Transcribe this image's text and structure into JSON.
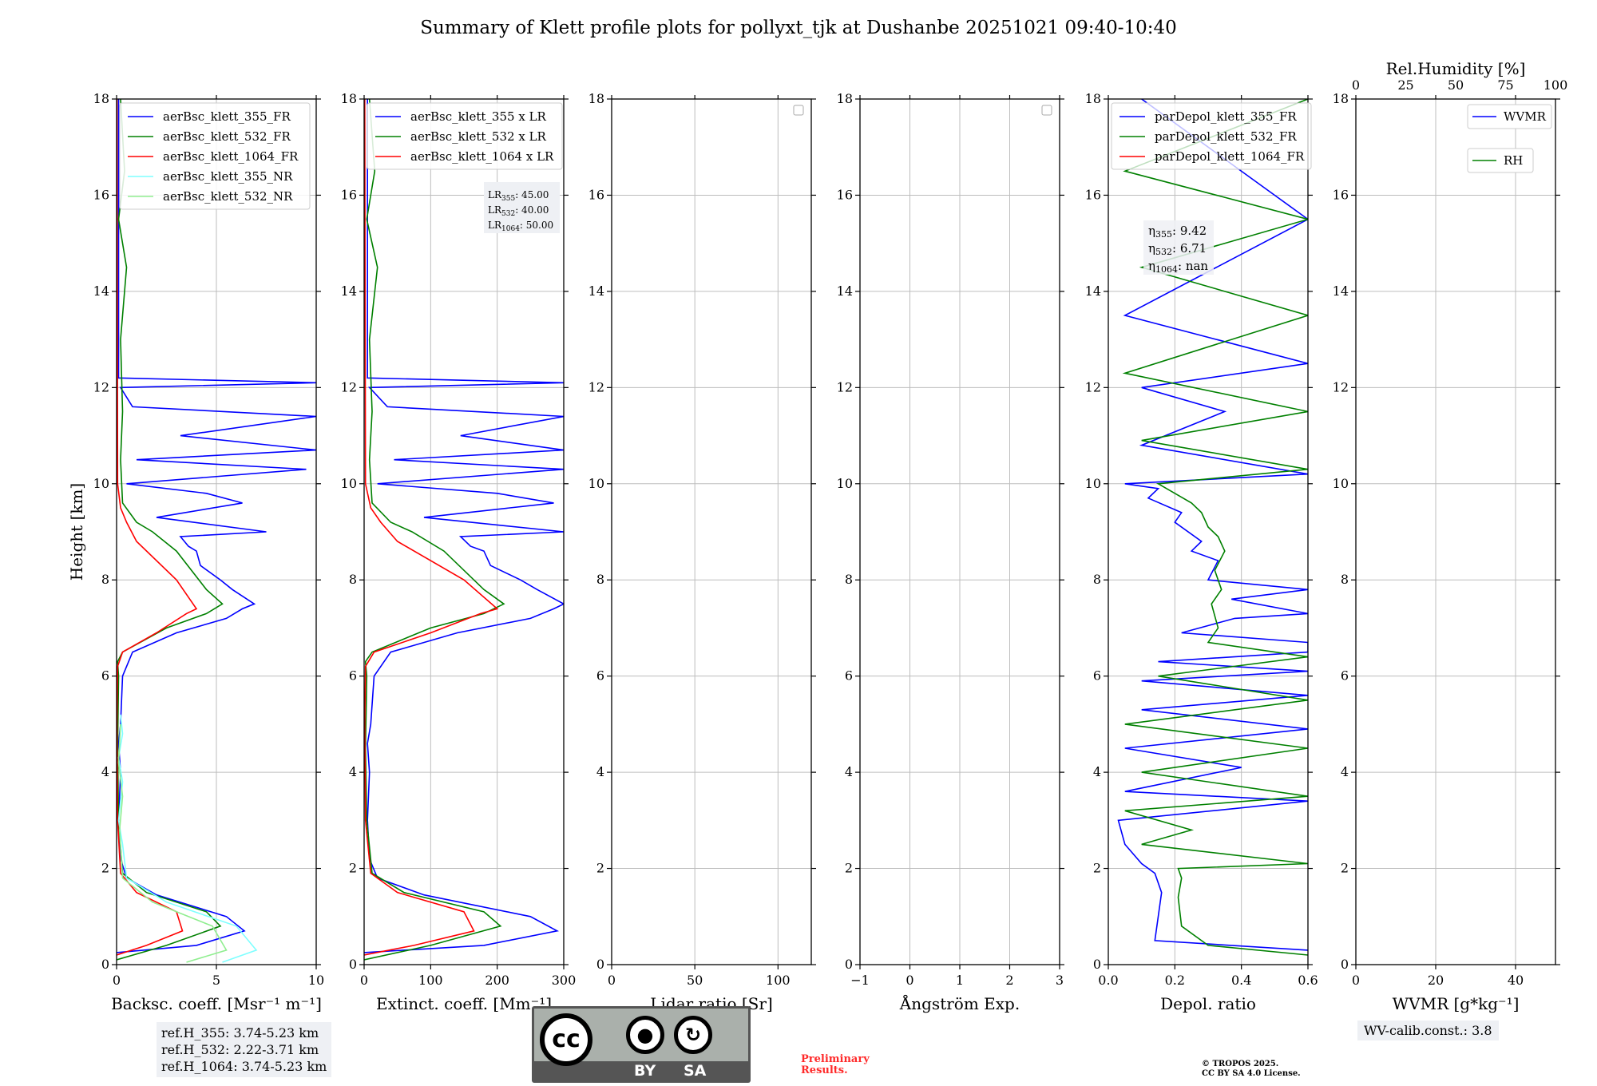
{
  "title": "Summary of Klett profile plots for pollyxt_tjk at Dushanbe 20251021 09:40-10:40",
  "colors": {
    "c355": "#0000ff",
    "c532": "#008000",
    "c1064": "#ff0000",
    "c355nr": "#7fffff",
    "c532nr": "#90ee90"
  },
  "chart_data": [
    {
      "type": "line",
      "id": "backscatter",
      "xlabel": "Backsc. coeff. [Msr⁻¹ m⁻¹]",
      "ylabel": "Height [km]",
      "xlim": [
        0,
        10
      ],
      "ylim": [
        0,
        18
      ],
      "xticks": [
        0,
        5,
        10
      ],
      "xtick_labels": [
        "0",
        "5",
        "10"
      ],
      "yticks": [
        0,
        2,
        4,
        6,
        8,
        10,
        12,
        14,
        16,
        18
      ],
      "ytick_labels": [
        "0",
        "2",
        "4",
        "6",
        "8",
        "10",
        "12",
        "14",
        "16",
        "18"
      ],
      "legend": [
        "aerBsc_klett_355_FR",
        "aerBsc_klett_532_FR",
        "aerBsc_klett_1064_FR",
        "aerBsc_klett_355_NR",
        "aerBsc_klett_532_NR"
      ],
      "series": [
        {
          "name": "aerBsc_klett_355_FR",
          "color": "#0000ff",
          "x": [
            0,
            4.0,
            6.4,
            5.5,
            2.0,
            0.5,
            0.2,
            0.1,
            0.2,
            0.1,
            0.2,
            0.3,
            0.8,
            3.0,
            5.5,
            6.3,
            6.9,
            5.8,
            5.2,
            4.2,
            4.0,
            3.6,
            3.2,
            7.5,
            2.0,
            6.3,
            4.5,
            0.5,
            9.5,
            1.0,
            10.0,
            3.2,
            10.0,
            0.8,
            0.2,
            10.0,
            0.1,
            0.1
          ],
          "y": [
            0.25,
            0.4,
            0.7,
            1.0,
            1.45,
            1.8,
            2.2,
            3.0,
            4.0,
            4.6,
            5.0,
            6.0,
            6.5,
            6.9,
            7.2,
            7.4,
            7.5,
            7.8,
            8.0,
            8.3,
            8.6,
            8.7,
            8.9,
            9.0,
            9.3,
            9.6,
            9.8,
            10.0,
            10.3,
            10.5,
            10.7,
            11.0,
            11.4,
            11.6,
            12.0,
            12.1,
            12.2,
            18.0
          ]
        },
        {
          "name": "aerBsc_klett_532_FR",
          "color": "#008000",
          "x": [
            0,
            2.5,
            5.2,
            4.5,
            1.5,
            0.3,
            0.1,
            0.05,
            0.1,
            0.05,
            0.3,
            2.5,
            4.5,
            5.3,
            4.5,
            3.0,
            1.8,
            1.0,
            0.3,
            0.2,
            0.3,
            0.2,
            0.5,
            0.1,
            0.4,
            0.2
          ],
          "y": [
            0.1,
            0.4,
            0.8,
            1.1,
            1.5,
            1.9,
            3.0,
            4.5,
            6.0,
            6.3,
            6.5,
            7.0,
            7.3,
            7.5,
            7.8,
            8.6,
            9.0,
            9.2,
            9.6,
            10.5,
            11.5,
            13.0,
            14.5,
            15.5,
            16.5,
            18.0
          ]
        },
        {
          "name": "aerBsc_klett_1064_FR",
          "color": "#ff0000",
          "x": [
            0,
            1.5,
            3.3,
            3.0,
            1.0,
            0.2,
            0.05,
            0.02,
            0.05,
            0.3,
            2.0,
            3.5,
            4.0,
            3.0,
            1.0,
            0.5,
            0.2,
            0.05,
            0.02
          ],
          "y": [
            0.2,
            0.4,
            0.7,
            1.1,
            1.5,
            1.9,
            3.0,
            5.0,
            6.2,
            6.5,
            6.9,
            7.3,
            7.4,
            8.0,
            8.8,
            9.2,
            9.5,
            10.0,
            18.0
          ]
        },
        {
          "name": "aerBsc_klett_355_NR",
          "color": "#7fffff",
          "x": [
            5.3,
            7.0,
            6.0,
            2.5,
            0.5,
            0.3,
            0.1,
            0.3,
            0.1,
            0.3,
            0.2
          ],
          "y": [
            0.05,
            0.3,
            0.8,
            1.3,
            1.8,
            2.5,
            3.0,
            3.8,
            4.3,
            4.8,
            5.2
          ]
        },
        {
          "name": "aerBsc_klett_532_NR",
          "color": "#90ee90",
          "x": [
            3.5,
            5.5,
            4.8,
            1.8,
            0.3,
            0.15,
            0.3,
            0.1,
            0.2
          ],
          "y": [
            0.05,
            0.3,
            0.8,
            1.3,
            1.8,
            2.8,
            3.5,
            4.2,
            5.0
          ]
        }
      ]
    },
    {
      "type": "line",
      "id": "extinction",
      "xlabel": "Extinct. coeff. [Mm⁻¹]",
      "xlim": [
        0,
        300
      ],
      "ylim": [
        0,
        18
      ],
      "xticks": [
        0,
        100,
        200,
        300
      ],
      "xtick_labels": [
        "0",
        "100",
        "200",
        "300"
      ],
      "yticks": [
        0,
        2,
        4,
        6,
        8,
        10,
        12,
        14,
        16,
        18
      ],
      "ytick_labels": [
        "0",
        "2",
        "4",
        "6",
        "8",
        "10",
        "12",
        "14",
        "16",
        "18"
      ],
      "legend": [
        "aerBsc_klett_355 x LR",
        "aerBsc_klett_532 x LR",
        "aerBsc_klett_1064 x LR"
      ],
      "annotation": {
        "lines": [
          "LR355: 45.00",
          "LR532: 40.00",
          "LR1064: 50.00"
        ]
      },
      "series": [
        {
          "name": "aerBsc_klett_355 x LR",
          "color": "#0000ff",
          "x": [
            0,
            180,
            290,
            250,
            90,
            20,
            8,
            5,
            8,
            5,
            10,
            15,
            40,
            140,
            250,
            285,
            300,
            260,
            235,
            190,
            180,
            160,
            145,
            300,
            90,
            285,
            200,
            20,
            300,
            45,
            300,
            145,
            300,
            35,
            8,
            300,
            5,
            5
          ],
          "y": [
            0.25,
            0.4,
            0.7,
            1.0,
            1.45,
            1.8,
            2.2,
            3.0,
            4.0,
            4.6,
            5.0,
            6.0,
            6.5,
            6.9,
            7.2,
            7.4,
            7.5,
            7.8,
            8.0,
            8.3,
            8.6,
            8.7,
            8.9,
            9.0,
            9.3,
            9.6,
            9.8,
            10.0,
            10.3,
            10.5,
            10.7,
            11.0,
            11.4,
            11.6,
            12.0,
            12.1,
            12.2,
            18.0
          ]
        },
        {
          "name": "aerBsc_klett_532 x LR",
          "color": "#008000",
          "x": [
            0,
            100,
            205,
            180,
            60,
            12,
            4,
            2,
            4,
            2,
            12,
            100,
            180,
            210,
            180,
            120,
            72,
            40,
            12,
            8,
            12,
            8,
            20,
            4,
            16,
            8
          ],
          "y": [
            0.1,
            0.4,
            0.8,
            1.1,
            1.5,
            1.9,
            3.0,
            4.5,
            6.0,
            6.3,
            6.5,
            7.0,
            7.3,
            7.5,
            7.8,
            8.6,
            9.0,
            9.2,
            9.6,
            10.5,
            11.5,
            13.0,
            14.5,
            15.5,
            16.5,
            18.0
          ]
        },
        {
          "name": "aerBsc_klett_1064 x LR",
          "color": "#ff0000",
          "x": [
            0,
            75,
            165,
            150,
            50,
            10,
            2,
            1,
            2,
            15,
            100,
            175,
            200,
            150,
            50,
            25,
            10,
            2,
            1
          ],
          "y": [
            0.2,
            0.4,
            0.7,
            1.1,
            1.5,
            1.9,
            3.0,
            5.0,
            6.2,
            6.5,
            6.9,
            7.3,
            7.4,
            8.0,
            8.8,
            9.2,
            9.5,
            10.0,
            18.0
          ]
        }
      ]
    },
    {
      "type": "line",
      "id": "lidar-ratio",
      "xlabel": "Lidar ratio [Sr]",
      "xlim": [
        0,
        120
      ],
      "ylim": [
        0,
        18
      ],
      "xticks": [
        0,
        50,
        100
      ],
      "xtick_labels": [
        "0",
        "50",
        "100"
      ],
      "yticks": [
        0,
        2,
        4,
        6,
        8,
        10,
        12,
        14,
        16,
        18
      ],
      "ytick_labels": [
        "0",
        "2",
        "4",
        "6",
        "8",
        "10",
        "12",
        "14",
        "16",
        "18"
      ],
      "series": []
    },
    {
      "type": "line",
      "id": "angstrom",
      "xlabel": "Ångström Exp.",
      "xlim": [
        -1,
        3
      ],
      "ylim": [
        0,
        18
      ],
      "xticks": [
        -1,
        0,
        1,
        2,
        3
      ],
      "xtick_labels": [
        "−1",
        "0",
        "1",
        "2",
        "3"
      ],
      "yticks": [
        0,
        2,
        4,
        6,
        8,
        10,
        12,
        14,
        16,
        18
      ],
      "ytick_labels": [
        "0",
        "2",
        "4",
        "6",
        "8",
        "10",
        "12",
        "14",
        "16",
        "18"
      ],
      "series": []
    },
    {
      "type": "line",
      "id": "depol",
      "xlabel": "Depol. ratio",
      "xlim": [
        0,
        0.6
      ],
      "ylim": [
        0,
        18
      ],
      "xticks": [
        0,
        0.2,
        0.4,
        0.6
      ],
      "xtick_labels": [
        "0.0",
        "0.2",
        "0.4",
        "0.6"
      ],
      "yticks": [
        0,
        2,
        4,
        6,
        8,
        10,
        12,
        14,
        16,
        18
      ],
      "ytick_labels": [
        "0",
        "2",
        "4",
        "6",
        "8",
        "10",
        "12",
        "14",
        "16",
        "18"
      ],
      "legend": [
        "parDepol_klett_355_FR",
        "parDepol_klett_532_FR",
        "parDepol_klett_1064_FR"
      ],
      "annotation": {
        "lines": [
          "η355: 9.42",
          "η532: 6.71",
          "η1064: nan"
        ]
      },
      "series": [
        {
          "name": "parDepol_klett_355_FR",
          "color": "#0000ff",
          "x": [
            0.6,
            0.14,
            0.15,
            0.16,
            0.14,
            0.1,
            0.05,
            0.03,
            0.6,
            0.05,
            0.4,
            0.05,
            0.6,
            0.1,
            0.6,
            0.1,
            0.6,
            0.15,
            0.6,
            0.6,
            0.22,
            0.38,
            0.6,
            0.37,
            0.6,
            0.3,
            0.33,
            0.25,
            0.28,
            0.2,
            0.22,
            0.12,
            0.15,
            0.05,
            0.6,
            0.1,
            0.35,
            0.1,
            0.6,
            0.05,
            0.6,
            0.1
          ],
          "y": [
            0.3,
            0.5,
            1.0,
            1.5,
            1.9,
            2.1,
            2.5,
            3.0,
            3.4,
            3.6,
            4.1,
            4.5,
            4.9,
            5.3,
            5.6,
            5.9,
            6.1,
            6.3,
            6.5,
            6.7,
            6.9,
            7.2,
            7.3,
            7.6,
            7.8,
            8.0,
            8.4,
            8.6,
            8.8,
            9.2,
            9.4,
            9.7,
            9.9,
            10.0,
            10.2,
            10.8,
            11.5,
            12.0,
            12.5,
            13.5,
            15.5,
            18.0
          ]
        },
        {
          "name": "parDepol_klett_532_FR",
          "color": "#008000",
          "x": [
            0.6,
            0.3,
            0.22,
            0.21,
            0.22,
            0.21,
            0.6,
            0.1,
            0.25,
            0.05,
            0.6,
            0.1,
            0.6,
            0.05,
            0.6,
            0.15,
            0.6,
            0.3,
            0.33,
            0.31,
            0.34,
            0.32,
            0.35,
            0.33,
            0.3,
            0.28,
            0.25,
            0.2,
            0.15,
            0.6,
            0.1,
            0.6,
            0.05,
            0.6,
            0.1,
            0.6,
            0.05,
            0.6
          ],
          "y": [
            0.2,
            0.4,
            0.8,
            1.4,
            1.8,
            2.0,
            2.1,
            2.5,
            2.8,
            3.2,
            3.5,
            4.0,
            4.5,
            5.0,
            5.5,
            6.0,
            6.4,
            6.7,
            7.0,
            7.5,
            7.8,
            8.2,
            8.6,
            8.9,
            9.1,
            9.4,
            9.6,
            9.8,
            10.0,
            10.3,
            10.9,
            11.5,
            12.3,
            13.5,
            14.5,
            15.5,
            16.5,
            18.0
          ]
        }
      ]
    },
    {
      "type": "line",
      "id": "wvmr",
      "xlabel": "WVMR [g*kg⁻¹]",
      "x2label": "Rel.Humidity [%]",
      "xlim": [
        0,
        50
      ],
      "ylim": [
        0,
        18
      ],
      "xticks": [
        0,
        20,
        40
      ],
      "xtick_labels": [
        "0",
        "20",
        "40"
      ],
      "x2lim": [
        0,
        100
      ],
      "x2ticks": [
        0,
        25,
        50,
        75,
        100
      ],
      "x2tick_labels": [
        "0",
        "25",
        "50",
        "75",
        "100"
      ],
      "yticks": [
        0,
        2,
        4,
        6,
        8,
        10,
        12,
        14,
        16,
        18
      ],
      "ytick_labels": [
        "0",
        "2",
        "4",
        "6",
        "8",
        "10",
        "12",
        "14",
        "16",
        "18"
      ],
      "legend": [
        "WVMR",
        "RH"
      ],
      "series": []
    }
  ],
  "footer": {
    "refh_lines": [
      "ref.H_355: 3.74-5.23 km",
      "ref.H_532: 2.22-3.71 km",
      "ref.H_1064: 3.74-5.23 km"
    ],
    "wv_calib": "WV-calib.const.: 3.8",
    "cc_main": "cc",
    "cc_by": "BY",
    "cc_sa": "SA",
    "preliminary_1": "Preliminary",
    "preliminary_2": "Results.",
    "copyright_1": "© TROPOS 2025.",
    "copyright_2": "CC BY SA 4.0 License."
  }
}
